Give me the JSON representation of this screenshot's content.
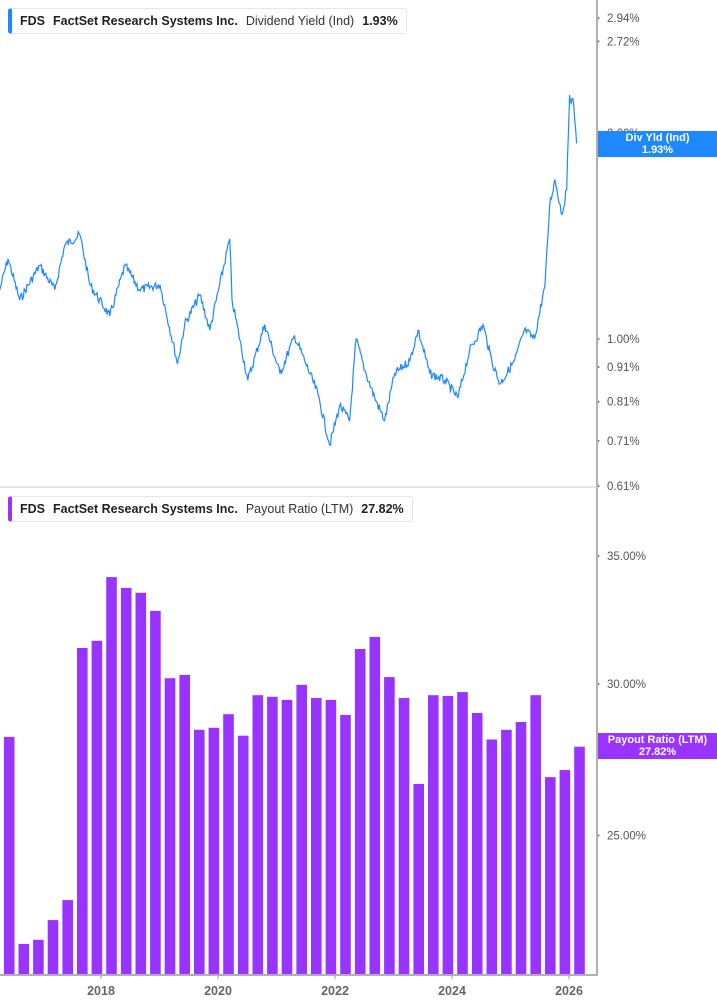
{
  "colors": {
    "yield": "#1e88ff",
    "payout": "#9933ff",
    "axis": "#b0b0b0"
  },
  "top_legend": {
    "ticker": "FDS",
    "company": "FactSet Research Systems Inc.",
    "metric": "Dividend Yield (Ind)",
    "value": "1.93%"
  },
  "bottom_legend": {
    "ticker": "FDS",
    "company": "FactSet Research Systems Inc.",
    "metric": "Payout Ratio (LTM)",
    "value": "27.82%"
  },
  "top_tag": {
    "label": "Div Yld (Ind)",
    "value": "1.93%"
  },
  "bottom_tag": {
    "label": "Payout Ratio (LTM)",
    "value": "27.82%"
  },
  "chart_data": [
    {
      "type": "line",
      "series": [
        {
          "name": "Dividend Yield (Ind)",
          "x": [
            2016.27,
            2016.41,
            2016.61,
            2016.95,
            2017.21,
            2017.38,
            2017.64,
            2017.81,
            2018.15,
            2018.41,
            2018.66,
            2019.01,
            2019.31,
            2019.43,
            2019.69,
            2019.86,
            2020.2,
            2020.24,
            2020.51,
            2020.8,
            2021.06,
            2021.31,
            2021.48,
            2021.71,
            2021.91,
            2022.08,
            2022.25,
            2022.36,
            2022.51,
            2022.68,
            2022.85,
            2023.02,
            2023.28,
            2023.42,
            2023.62,
            2023.88,
            2024.1,
            2024.3,
            2024.53,
            2024.68,
            2024.82,
            2025.07,
            2025.24,
            2025.41,
            2025.59,
            2025.67,
            2025.76,
            2025.88,
            2025.96,
            2026.01,
            2026.08,
            2026.13
          ],
          "y": [
            1.18,
            1.31,
            1.14,
            1.28,
            1.18,
            1.37,
            1.42,
            1.2,
            1.08,
            1.28,
            1.18,
            1.2,
            0.92,
            1.05,
            1.16,
            1.03,
            1.4,
            1.14,
            0.87,
            1.05,
            0.89,
            1.01,
            0.93,
            0.83,
            0.7,
            0.8,
            0.76,
            1.0,
            0.9,
            0.82,
            0.76,
            0.89,
            0.93,
            1.03,
            0.89,
            0.87,
            0.82,
            0.96,
            1.05,
            0.93,
            0.86,
            0.93,
            1.03,
            1.0,
            1.2,
            1.57,
            1.71,
            1.52,
            1.65,
            2.27,
            2.2,
            1.93
          ]
        }
      ],
      "yscale": "log",
      "y_ticks": [
        "2.94%",
        "2.72%",
        "2.00%",
        "1.00%",
        "0.91%",
        "0.81%",
        "0.71%",
        "0.61%"
      ],
      "y_tick_values": [
        2.94,
        2.72,
        2.0,
        1.0,
        0.91,
        0.81,
        0.71,
        0.61
      ],
      "ylim": [
        0.61,
        3.1
      ],
      "xlim": [
        2016.27,
        2026.47
      ]
    },
    {
      "type": "bar",
      "series": [
        {
          "name": "Payout Ratio (LTM)",
          "x": [
            2016.43,
            2016.68,
            2016.93,
            2017.18,
            2017.43,
            2017.68,
            2017.93,
            2018.18,
            2018.43,
            2018.68,
            2018.93,
            2019.18,
            2019.43,
            2019.68,
            2019.93,
            2020.18,
            2020.43,
            2020.68,
            2020.93,
            2021.18,
            2021.43,
            2021.68,
            2021.93,
            2022.18,
            2022.43,
            2022.68,
            2022.93,
            2023.18,
            2023.43,
            2023.68,
            2023.93,
            2024.18,
            2024.43,
            2024.68,
            2024.93,
            2025.18,
            2025.43,
            2025.68,
            2025.93,
            2026.18
          ],
          "values": [
            28.15,
            21.94,
            22.05,
            22.58,
            23.13,
            31.33,
            31.6,
            34.12,
            33.68,
            33.48,
            32.76,
            30.21,
            30.33,
            28.39,
            28.46,
            28.93,
            28.19,
            29.6,
            29.54,
            29.43,
            29.97,
            29.5,
            29.43,
            28.9,
            31.29,
            31.75,
            30.25,
            29.5,
            26.6,
            29.6,
            29.57,
            29.71,
            28.97,
            28.06,
            28.39,
            28.66,
            29.6,
            26.82,
            27.05,
            27.82
          ]
        }
      ],
      "yscale": "log",
      "y_ticks": [
        "35.00%",
        "30.00%",
        "25.00%"
      ],
      "y_tick_values": [
        35,
        30,
        25
      ],
      "ylim": [
        21.1,
        37.3
      ],
      "x_ticks": [
        "2018",
        "2020",
        "2022",
        "2024",
        "2026"
      ],
      "x_tick_values": [
        2018,
        2020,
        2022,
        2024,
        2026
      ],
      "xlim": [
        2016.27,
        2026.47
      ]
    }
  ]
}
